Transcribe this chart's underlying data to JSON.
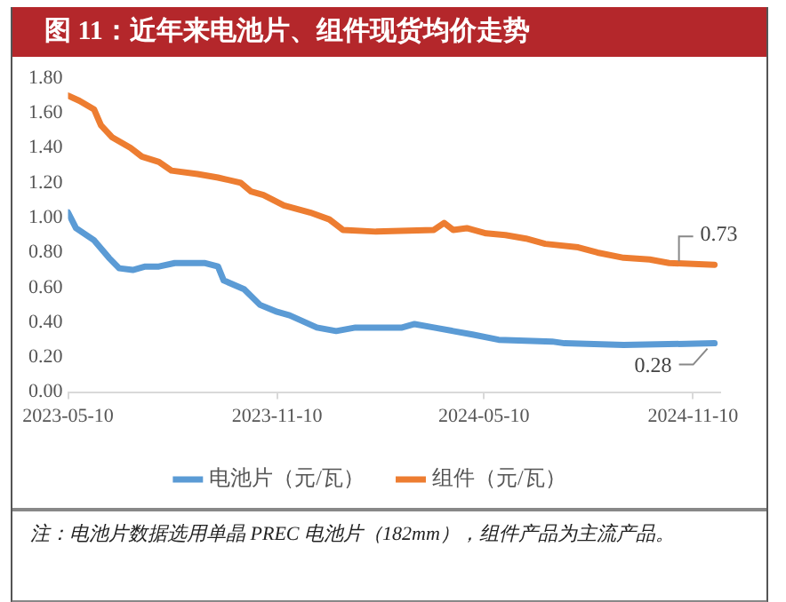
{
  "chart_data": {
    "type": "line",
    "title": "图 11：近年来电池片、组件现货均价走势",
    "xlim": [
      "2023-05-10",
      "2024-12-04"
    ],
    "xticks": [
      "2023-05-10",
      "2023-11-10",
      "2024-05-10",
      "2024-11-10"
    ],
    "ylim": [
      0,
      1.8
    ],
    "yticks": [
      {
        "value": 0,
        "label": "0.00"
      },
      {
        "value": 0.2,
        "label": "0.20"
      },
      {
        "value": 0.4,
        "label": "0.40"
      },
      {
        "value": 0.6,
        "label": "0.60"
      },
      {
        "value": 0.8,
        "label": "0.80"
      },
      {
        "value": 1.0,
        "label": "1.00"
      },
      {
        "value": 1.2,
        "label": "1.20"
      },
      {
        "value": 1.4,
        "label": "1.40"
      },
      {
        "value": 1.6,
        "label": "1.60"
      },
      {
        "value": 1.8,
        "label": "1.80"
      }
    ],
    "grid": false,
    "legend": "bottom",
    "marker": "none",
    "line_style": "solid",
    "series": [
      {
        "name": "电池片（元/瓦）",
        "color": "#5b9bd5",
        "x": [
          "2023-05-10",
          "2023-05-17",
          "2023-06-02",
          "2023-06-15",
          "2023-06-24",
          "2023-07-06",
          "2023-07-17",
          "2023-07-29",
          "2023-08-12",
          "2023-09-07",
          "2023-09-19",
          "2023-09-24",
          "2023-10-12",
          "2023-10-26",
          "2023-11-10",
          "2023-11-21",
          "2023-12-15",
          "2024-01-01",
          "2024-01-18",
          "2024-01-24",
          "2024-02-28",
          "2024-03-10",
          "2024-03-27",
          "2024-04-13",
          "2024-04-30",
          "2024-05-23",
          "2024-07-09",
          "2024-07-20",
          "2024-09-10",
          "2024-11-29"
        ],
        "values": [
          1.03,
          0.94,
          0.87,
          0.77,
          0.71,
          0.7,
          0.72,
          0.72,
          0.74,
          0.74,
          0.72,
          0.64,
          0.59,
          0.5,
          0.46,
          0.44,
          0.37,
          0.35,
          0.37,
          0.37,
          0.37,
          0.39,
          0.37,
          0.35,
          0.33,
          0.3,
          0.29,
          0.28,
          0.27,
          0.28
        ]
      },
      {
        "name": "组件（元/瓦）",
        "color": "#ed7d31",
        "x": [
          "2023-05-10",
          "2023-05-20",
          "2023-06-02",
          "2023-06-08",
          "2023-06-18",
          "2023-07-04",
          "2023-07-14",
          "2023-07-29",
          "2023-08-09",
          "2023-09-01",
          "2023-09-19",
          "2023-10-09",
          "2023-10-18",
          "2023-10-29",
          "2023-11-16",
          "2023-12-09",
          "2023-12-26",
          "2024-01-07",
          "2024-02-05",
          "2024-03-27",
          "2024-04-05",
          "2024-04-13",
          "2024-04-25",
          "2024-05-12",
          "2024-05-29",
          "2024-06-16",
          "2024-07-03",
          "2024-08-01",
          "2024-08-18",
          "2024-09-10",
          "2024-10-03",
          "2024-10-20",
          "2024-11-29"
        ],
        "values": [
          1.7,
          1.67,
          1.62,
          1.53,
          1.46,
          1.4,
          1.35,
          1.32,
          1.27,
          1.25,
          1.23,
          1.2,
          1.15,
          1.13,
          1.07,
          1.03,
          0.99,
          0.93,
          0.92,
          0.93,
          0.97,
          0.93,
          0.94,
          0.91,
          0.9,
          0.88,
          0.85,
          0.83,
          0.8,
          0.77,
          0.76,
          0.74,
          0.73
        ]
      }
    ],
    "annotations": [
      {
        "text": "0.73",
        "x": "2024-11-29",
        "y": 0.73
      },
      {
        "text": "0.28",
        "x": "2024-11-29",
        "y": 0.28
      },
      "注：电池片数据选用单晶 PREC 电池片（182mm），组件产品为主流产品。"
    ]
  }
}
